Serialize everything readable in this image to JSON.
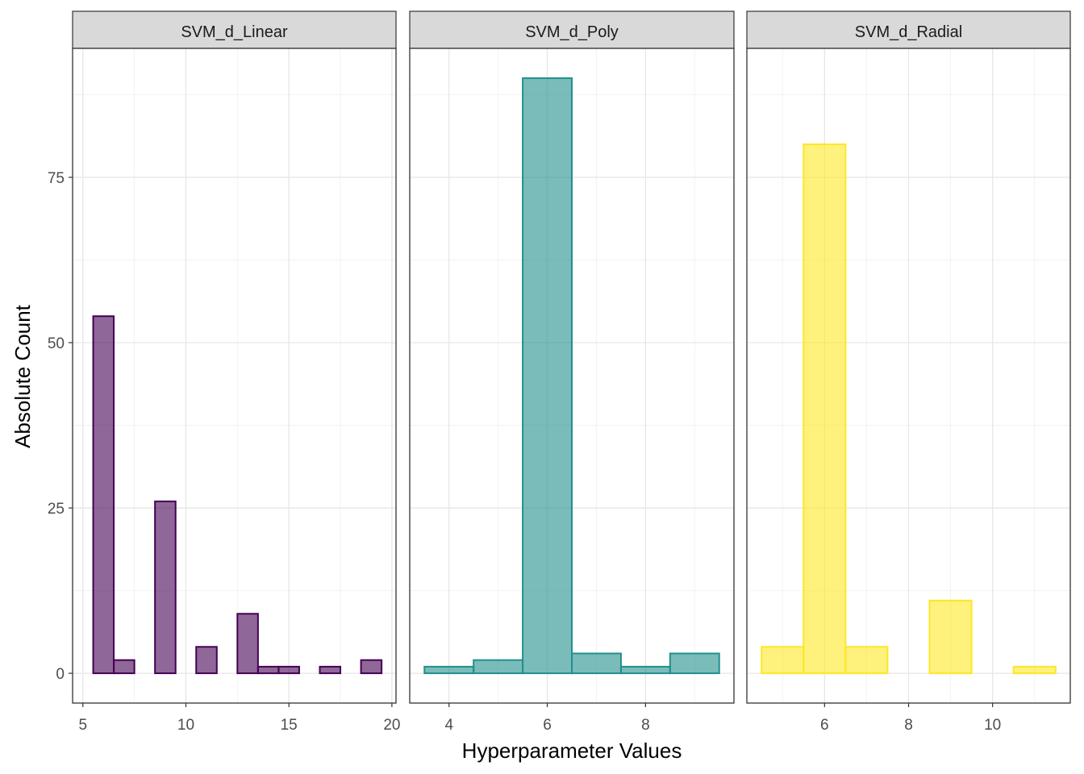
{
  "chart_data": {
    "type": "bar",
    "facets": true,
    "xlabel": "Hyperparameter Values",
    "ylabel": "Absolute Count",
    "ylim": [
      -4.5,
      94.5
    ],
    "yticks": [
      0,
      25,
      50,
      75
    ],
    "grid": true,
    "panels": [
      {
        "name": "SVM_d_Linear",
        "color": "#440154",
        "xlim": [
          4.5,
          20.2
        ],
        "xticks": [
          5,
          10,
          15,
          20
        ],
        "binwidth": 1,
        "x": [
          6,
          7,
          8,
          9,
          10,
          11,
          12,
          13,
          14,
          15,
          16,
          17,
          18,
          19
        ],
        "values": [
          54,
          2,
          0,
          26,
          0,
          4,
          0,
          9,
          1,
          1,
          0,
          1,
          0,
          2
        ]
      },
      {
        "name": "SVM_d_Poly",
        "color": "#21908C",
        "xlim": [
          3.2,
          9.8
        ],
        "xticks": [
          4,
          6,
          8
        ],
        "binwidth": 1,
        "x": [
          4,
          5,
          6,
          7,
          8,
          9
        ],
        "values": [
          1,
          2,
          90,
          3,
          1,
          3
        ]
      },
      {
        "name": "SVM_d_Radial",
        "color": "#FDE725",
        "xlim": [
          4.15,
          11.85
        ],
        "xticks": [
          6,
          8,
          10
        ],
        "binwidth": 1,
        "x": [
          5,
          6,
          7,
          8,
          9,
          10,
          11
        ],
        "values": [
          4,
          80,
          4,
          0,
          11,
          0,
          1
        ]
      }
    ]
  }
}
